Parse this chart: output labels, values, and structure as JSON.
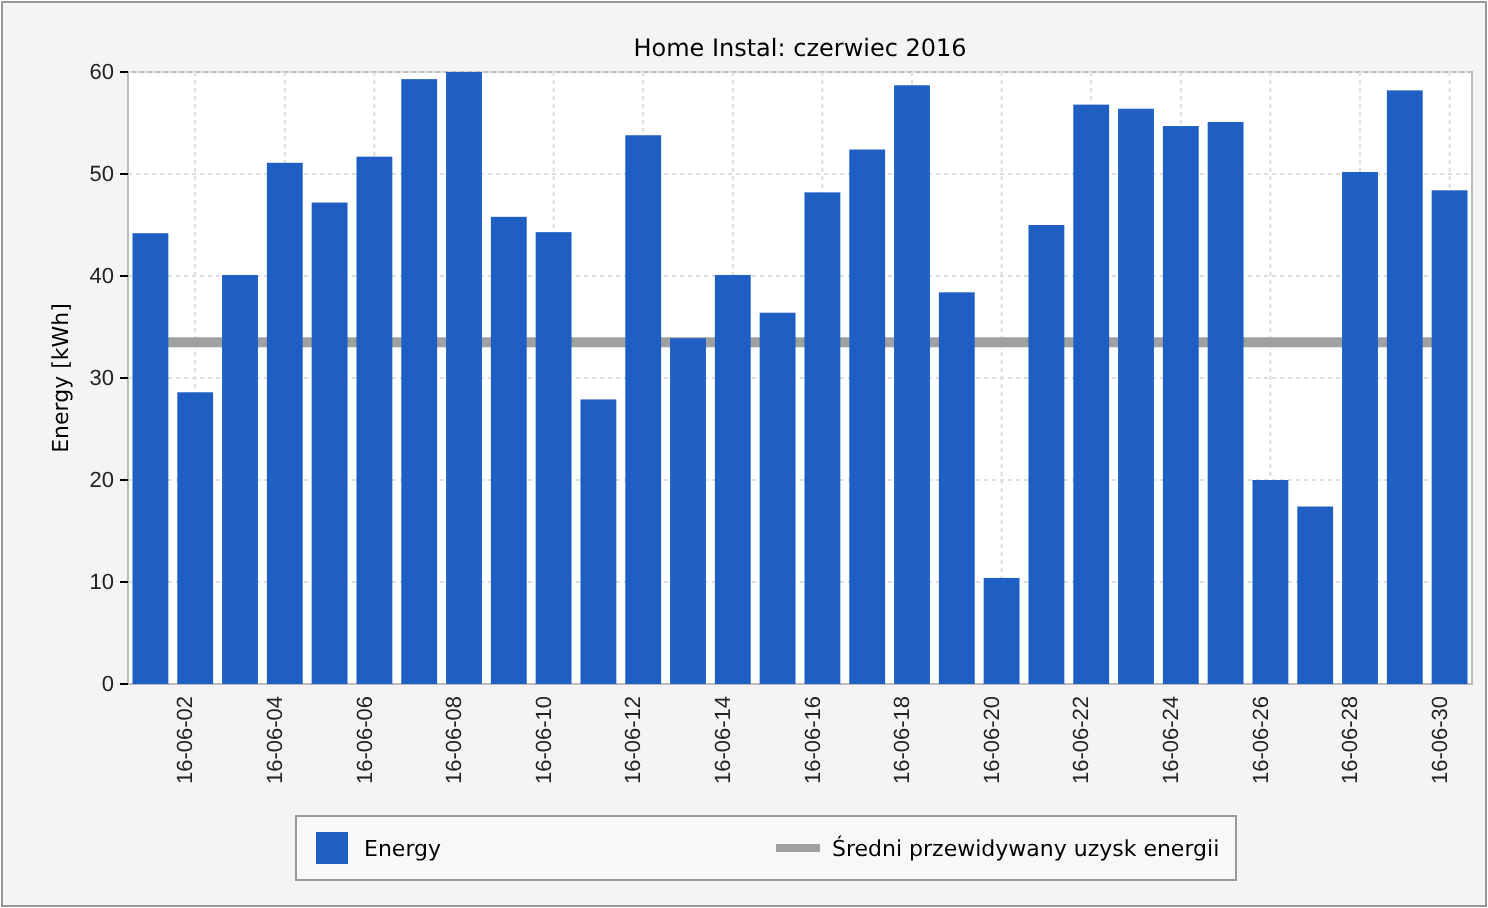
{
  "chart_data": {
    "type": "bar",
    "title": "Home Instal: czerwiec 2016",
    "ylabel": "Energy [kWh]",
    "categories": [
      null,
      "16-06-02",
      null,
      "16-06-04",
      null,
      "16-06-06",
      null,
      "16-06-08",
      null,
      "16-06-10",
      null,
      "16-06-12",
      null,
      "16-06-14",
      null,
      "16-06-16",
      null,
      "16-06-18",
      null,
      "16-06-20",
      null,
      "16-06-22",
      null,
      "16-06-24",
      null,
      "16-06-26",
      null,
      "16-06-28",
      null,
      "16-06-30"
    ],
    "series": [
      {
        "name": "Energy",
        "color": "#1f5fc4",
        "values": [
          44.2,
          28.6,
          40.1,
          51.1,
          47.2,
          51.7,
          59.3,
          60.0,
          45.8,
          44.3,
          27.9,
          53.8,
          33.9,
          40.1,
          36.4,
          48.2,
          52.4,
          58.7,
          38.4,
          10.4,
          45.0,
          56.8,
          56.4,
          54.7,
          55.1,
          20.0,
          17.4,
          50.2,
          58.2,
          48.4
        ]
      }
    ],
    "ref_lines": [
      {
        "axis": "y",
        "value": 33.5,
        "label": "Średni przewidywany uzysk energii",
        "color": "#a0a0a0"
      }
    ],
    "ylim": [
      0,
      60
    ],
    "yticks": [
      0,
      10,
      20,
      30,
      40,
      50,
      60
    ],
    "grid": true,
    "legend": "bottom"
  }
}
